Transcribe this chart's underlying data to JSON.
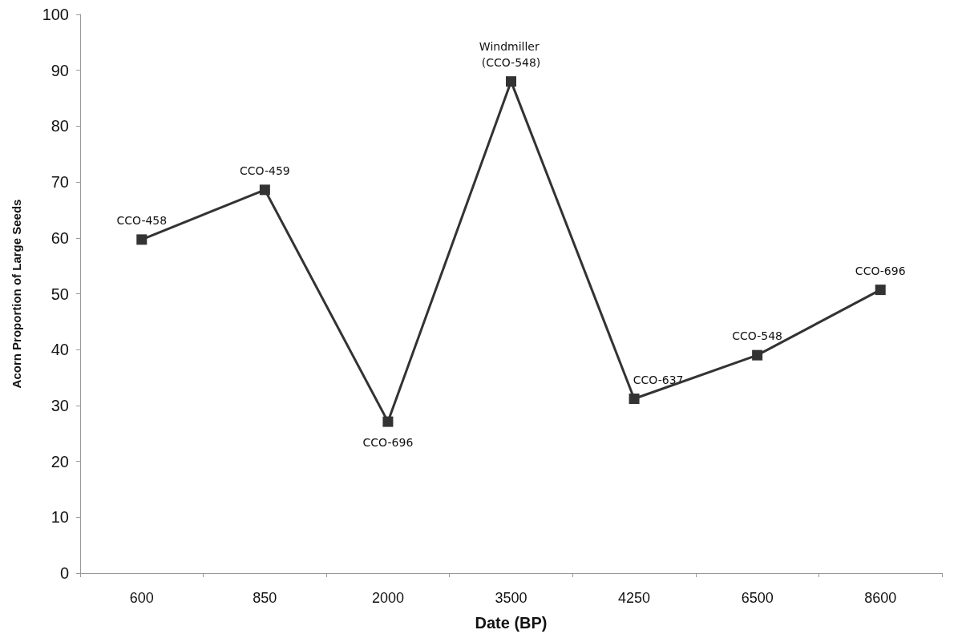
{
  "chart_data": {
    "type": "line",
    "xlabel": "Date (BP)",
    "ylabel": "Acorn Proportion of Large Seeds",
    "categories": [
      "600",
      "850",
      "2000",
      "3500",
      "4250",
      "6500",
      "8600"
    ],
    "series": [
      {
        "color": "#333333",
        "values": [
          59.7,
          68.6,
          27.1,
          88,
          31.2,
          39,
          50.7
        ]
      }
    ],
    "ylim": [
      0,
      100
    ],
    "yticks": [
      0,
      10,
      20,
      30,
      40,
      50,
      60,
      70,
      80,
      90,
      100
    ],
    "grid": false,
    "marker": "square",
    "line_style": "solid",
    "annotations": [
      {
        "text": "CCO-458",
        "x": "600",
        "y": 59.7
      },
      {
        "text": "CCO-459",
        "x": "850",
        "y": 68.6
      },
      {
        "text": "CCO-696",
        "x": "2000",
        "y": 27.1
      },
      {
        "text": "Windmiller (CCO-548)",
        "x": "3500",
        "y": 88
      },
      {
        "text": "CCO-637",
        "x": "4250",
        "y": 31.2
      },
      {
        "text": "CCO-548",
        "x": "6500",
        "y": 39
      },
      {
        "text": "CCO-696",
        "x": "8600",
        "y": 50.7
      }
    ]
  }
}
